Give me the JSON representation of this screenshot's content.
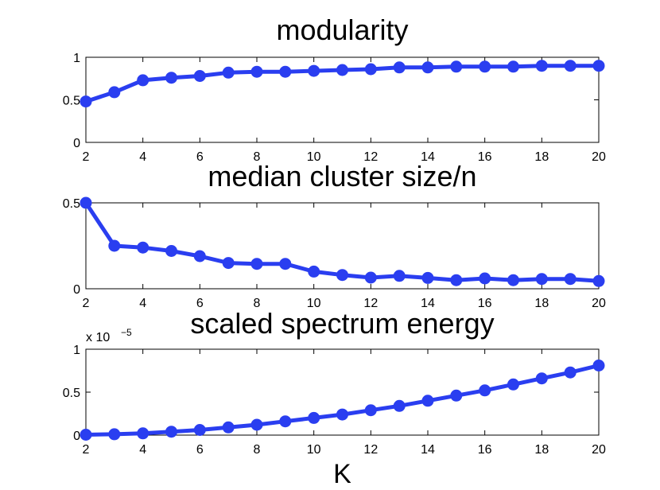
{
  "chart_data": [
    {
      "type": "line",
      "title": "modularity",
      "xlabel": "",
      "ylabel": "",
      "x": [
        2,
        3,
        4,
        5,
        6,
        7,
        8,
        9,
        10,
        11,
        12,
        13,
        14,
        15,
        16,
        17,
        18,
        19,
        20
      ],
      "series": [
        {
          "name": "modularity",
          "color": "#2a3ef0",
          "values": [
            0.48,
            0.59,
            0.73,
            0.76,
            0.78,
            0.82,
            0.83,
            0.83,
            0.84,
            0.85,
            0.86,
            0.88,
            0.88,
            0.89,
            0.89,
            0.89,
            0.9,
            0.9,
            0.9
          ]
        }
      ],
      "xlim": [
        2,
        20
      ],
      "ylim": [
        0,
        1
      ],
      "xticks": [
        "2",
        "4",
        "6",
        "8",
        "10",
        "12",
        "14",
        "16",
        "18",
        "20"
      ],
      "yticks": [
        "0",
        "0.5",
        "1"
      ],
      "grid": false
    },
    {
      "type": "line",
      "title": "median cluster size/n",
      "xlabel": "",
      "ylabel": "",
      "x": [
        2,
        3,
        4,
        5,
        6,
        7,
        8,
        9,
        10,
        11,
        12,
        13,
        14,
        15,
        16,
        17,
        18,
        19,
        20
      ],
      "series": [
        {
          "name": "median cluster size/n",
          "color": "#2a3ef0",
          "values": [
            0.5,
            0.25,
            0.24,
            0.22,
            0.19,
            0.15,
            0.145,
            0.145,
            0.1,
            0.08,
            0.065,
            0.075,
            0.063,
            0.05,
            0.06,
            0.05,
            0.057,
            0.057,
            0.045
          ]
        }
      ],
      "xlim": [
        2,
        20
      ],
      "ylim": [
        0,
        0.5
      ],
      "xticks": [
        "2",
        "4",
        "6",
        "8",
        "10",
        "12",
        "14",
        "16",
        "18",
        "20"
      ],
      "yticks": [
        "0",
        "0.5"
      ],
      "grid": false
    },
    {
      "type": "line",
      "title": "scaled spectrum energy",
      "xlabel": "K",
      "ylabel": "",
      "y_multiplier": {
        "base": "x 10",
        "exponent": "−5"
      },
      "x": [
        2,
        3,
        4,
        5,
        6,
        7,
        8,
        9,
        10,
        11,
        12,
        13,
        14,
        15,
        16,
        17,
        18,
        19,
        20
      ],
      "series": [
        {
          "name": "scaled spectrum energy",
          "color": "#2a3ef0",
          "values": [
            0.005,
            0.01,
            0.02,
            0.04,
            0.06,
            0.09,
            0.12,
            0.16,
            0.2,
            0.24,
            0.29,
            0.34,
            0.4,
            0.46,
            0.52,
            0.59,
            0.66,
            0.73,
            0.81
          ]
        }
      ],
      "xlim": [
        2,
        20
      ],
      "ylim": [
        0,
        1
      ],
      "xticks": [
        "2",
        "4",
        "6",
        "8",
        "10",
        "12",
        "14",
        "16",
        "18",
        "20"
      ],
      "yticks": [
        "0",
        "0.5",
        "1"
      ],
      "grid": false
    }
  ]
}
